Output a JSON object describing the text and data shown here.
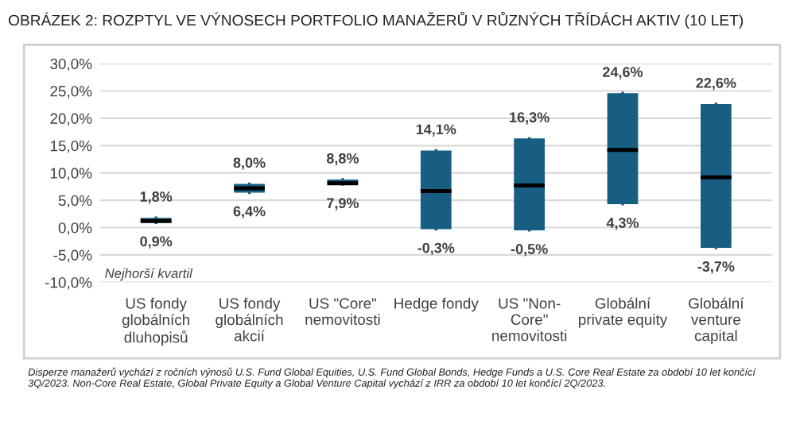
{
  "chart_data": {
    "type": "box",
    "title": "OBRÁZEK 2: ROZPTYL VE VÝNOSECH PORTFOLIO MANAŽERŮ V RŮZNÝCH TŘÍDÁCH AKTIV (10 LET)",
    "categories": [
      "US fondy\nglobálních\ndluhopisů",
      "US fondy\nglobálních\nakcií",
      "US \"Core\"\nnemovitosti",
      "Hedge fondy",
      "US \"Non-\nCore\"\nnemovitosti",
      "Globální\nprivate equity",
      "Globální\nventure\ncapital"
    ],
    "color": "#175e82",
    "boxes": [
      {
        "low": 0.9,
        "q1": 0.9,
        "median": 1.2,
        "q3": 1.8,
        "high": 1.8
      },
      {
        "low": 6.4,
        "q1": 6.4,
        "median": 7.2,
        "q3": 8.0,
        "high": 8.0
      },
      {
        "low": 7.9,
        "q1": 7.9,
        "median": 8.1,
        "q3": 8.8,
        "high": 8.8
      },
      {
        "low": -0.3,
        "q1": -0.3,
        "median": 6.7,
        "q3": 14.1,
        "high": 14.1
      },
      {
        "low": -0.5,
        "q1": -0.5,
        "median": 7.7,
        "q3": 16.3,
        "high": 16.3
      },
      {
        "low": 4.3,
        "q1": 4.3,
        "median": 14.2,
        "q3": 24.6,
        "high": 24.6
      },
      {
        "low": -3.7,
        "q1": -3.7,
        "median": 9.2,
        "q3": 22.6,
        "high": 22.6
      }
    ],
    "ylim": [
      -10,
      30
    ],
    "yticks": [
      {
        "value": -10,
        "label": "-10,0%"
      },
      {
        "value": -5,
        "label": "-5,0%"
      },
      {
        "value": 0,
        "label": "0,0%"
      },
      {
        "value": 5,
        "label": "5,0%"
      },
      {
        "value": 10,
        "label": "10,0%"
      },
      {
        "value": 15,
        "label": "15,0%"
      },
      {
        "value": 20,
        "label": "20,0%"
      },
      {
        "value": 25,
        "label": "25,0%"
      },
      {
        "value": 30,
        "label": "30,0%"
      }
    ],
    "grid": "y",
    "annotations": [
      {
        "text": "1,8%",
        "x": "US fondy\nglobálních\ndluhopisů",
        "y": 1.8
      },
      {
        "text": "0,9%",
        "x": "US fondy\nglobálních\ndluhopisů",
        "y": 0.9
      },
      {
        "text": "8,0%",
        "x": "US fondy\nglobálních\nakcií",
        "y": 8.0
      },
      {
        "text": "6,4%",
        "x": "US fondy\nglobálních\nakcií",
        "y": 6.4
      },
      {
        "text": "8,8%",
        "x": "US \"Core\"\nnemovitosti",
        "y": 8.8
      },
      {
        "text": "7,9%",
        "x": "US \"Core\"\nnemovitosti",
        "y": 7.9
      },
      {
        "text": "14,1%",
        "x": "Hedge fondy",
        "y": 14.1
      },
      {
        "text": "-0,3%",
        "x": "Hedge fondy",
        "y": -0.3
      },
      {
        "text": "16,3%",
        "x": "US \"Non-\nCore\"\nnemovitosti",
        "y": 16.3
      },
      {
        "text": "-0,5%",
        "x": "US \"Non-\nCore\"\nnemovitosti",
        "y": -0.5
      },
      {
        "text": "24,6%",
        "x": "Globální\nprivate equity",
        "y": 24.6
      },
      {
        "text": "4,3%",
        "x": "Globální\nprivate equity",
        "y": 4.3
      },
      {
        "text": "22,6%",
        "x": "Globální\nventure\ncapital",
        "y": 22.6
      },
      {
        "text": "-3,7%",
        "x": "Globální\nventure\ncapital",
        "y": -3.7
      },
      "Nejhorší kvartil",
      "Disperze manažerů vychází z ročních výnosů U.S. Fund Global Equities, U.S. Fund Global Bonds, Hedge Funds a U.S. Core Real Estate za období 10 let končící 3Q/2023. Non-Core Real Estate, Global Private Equity a Global Venture Capital vychází z IRR za období 10 let končící 2Q/2023."
    ]
  }
}
